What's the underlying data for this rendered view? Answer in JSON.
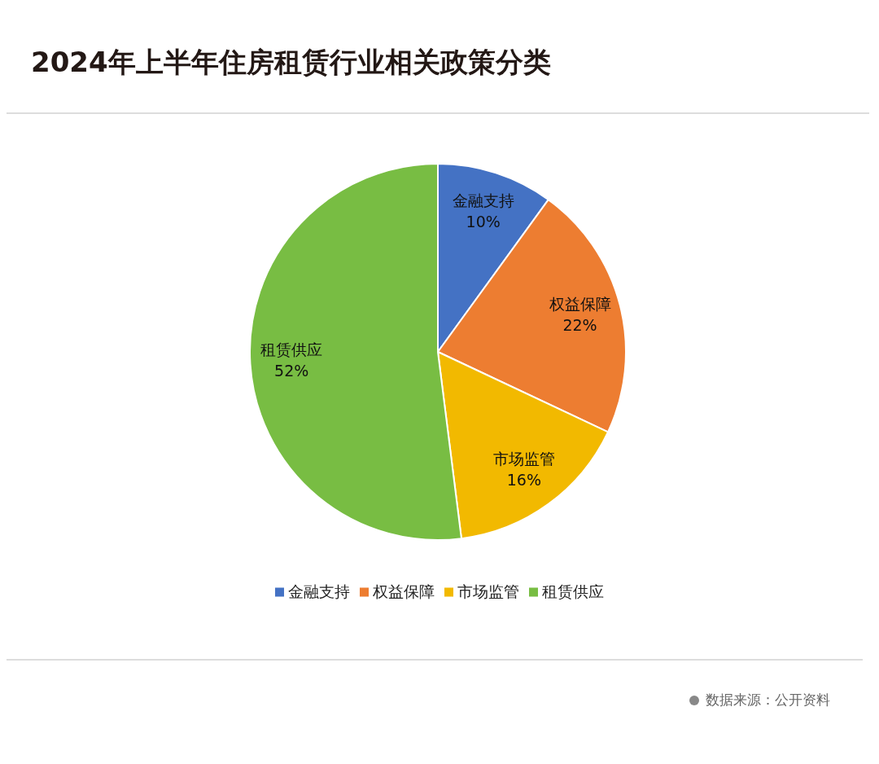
{
  "chart_data": {
    "type": "pie",
    "title": "2024年上半年住房租赁行业相关政策分类",
    "categories": [
      "金融支持",
      "权益保障",
      "市场监管",
      "租赁供应"
    ],
    "values": [
      10,
      22,
      16,
      52
    ],
    "colors": [
      "#4472c4",
      "#ed7d31",
      "#f2b900",
      "#78bd43"
    ],
    "value_labels": [
      "10%",
      "22%",
      "16%",
      "52%"
    ],
    "legend": "bottom",
    "annotations": [
      "数据来源：公开资料"
    ]
  }
}
